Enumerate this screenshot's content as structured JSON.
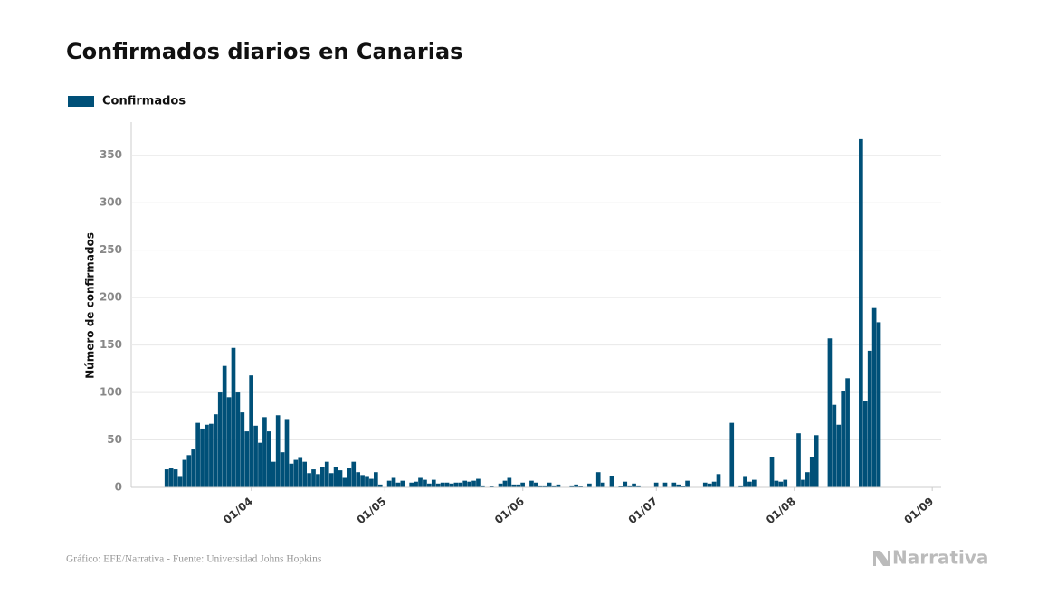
{
  "chart_data": {
    "type": "bar",
    "title": "Confirmados diarios en Canarias",
    "ylabel": "Número de confirmados",
    "source": "Gráfico: EFE/Narrativa - Fuente: Universidad Johns Hopkins",
    "logo": "Narrativa",
    "series": [
      {
        "name": "Confirmados",
        "color": "#005078",
        "values": [
          19,
          20,
          19,
          11,
          29,
          34,
          40,
          68,
          62,
          66,
          67,
          77,
          100,
          128,
          95,
          147,
          100,
          79,
          59,
          118,
          65,
          47,
          74,
          59,
          27,
          76,
          37,
          72,
          25,
          29,
          31,
          27,
          15,
          19,
          14,
          21,
          27,
          15,
          21,
          18,
          10,
          20,
          27,
          16,
          13,
          11,
          9,
          16,
          3,
          0,
          7,
          10,
          5,
          7,
          0,
          5,
          6,
          10,
          8,
          4,
          8,
          4,
          5,
          5,
          4,
          5,
          5,
          7,
          6,
          7,
          9,
          2,
          0,
          1,
          0,
          4,
          7,
          10,
          3,
          3,
          5,
          0,
          7,
          5,
          2,
          2,
          5,
          2,
          3,
          0,
          0,
          2,
          3,
          1,
          0,
          4,
          0,
          16,
          5,
          0,
          12,
          0,
          1,
          6,
          2,
          4,
          2,
          0,
          0,
          0,
          5,
          0,
          5,
          0,
          5,
          3,
          1,
          7,
          0,
          0,
          0,
          5,
          4,
          6,
          14,
          0,
          0,
          68,
          0,
          2,
          11,
          6,
          8,
          0,
          0,
          0,
          32,
          7,
          6,
          8,
          0,
          0,
          57,
          8,
          16,
          32,
          55,
          0,
          0,
          157,
          87,
          66,
          101,
          115,
          0,
          0,
          367,
          91,
          144,
          189,
          174
        ]
      }
    ],
    "x": [
      "13/03",
      "14/03",
      "15/03",
      "16/03",
      "17/03",
      "18/03",
      "19/03",
      "20/03",
      "21/03",
      "22/03",
      "23/03",
      "24/03",
      "25/03",
      "26/03",
      "27/03",
      "28/03",
      "29/03",
      "30/03",
      "31/03",
      "01/04",
      "02/04",
      "03/04",
      "04/04",
      "05/04",
      "06/04",
      "07/04",
      "08/04",
      "09/04",
      "10/04",
      "11/04",
      "12/04",
      "13/04",
      "14/04",
      "15/04",
      "16/04",
      "17/04",
      "18/04",
      "19/04",
      "20/04",
      "21/04",
      "22/04",
      "23/04",
      "24/04",
      "25/04",
      "26/04",
      "27/04",
      "28/04",
      "29/04",
      "30/04",
      "01/05",
      "02/05",
      "03/05",
      "04/05",
      "05/05",
      "06/05",
      "07/05",
      "08/05",
      "09/05",
      "10/05",
      "11/05",
      "12/05",
      "13/05",
      "14/05",
      "15/05",
      "16/05",
      "17/05",
      "18/05",
      "19/05",
      "20/05",
      "21/05",
      "22/05",
      "23/05",
      "24/05",
      "25/05",
      "26/05",
      "27/05",
      "28/05",
      "29/05",
      "30/05",
      "31/05",
      "01/06",
      "02/06",
      "03/06",
      "04/06",
      "05/06",
      "06/06",
      "07/06",
      "08/06",
      "09/06",
      "10/06",
      "11/06",
      "12/06",
      "13/06",
      "14/06",
      "15/06",
      "16/06",
      "17/06",
      "18/06",
      "19/06",
      "20/06",
      "21/06",
      "22/06",
      "23/06",
      "24/06",
      "25/06",
      "26/06",
      "27/06",
      "28/06",
      "29/06",
      "30/06",
      "01/07",
      "02/07",
      "03/07",
      "04/07",
      "05/07",
      "06/07",
      "07/07",
      "08/07",
      "09/07",
      "10/07",
      "11/07",
      "12/07",
      "13/07",
      "14/07",
      "15/07",
      "16/07",
      "17/07",
      "18/07",
      "19/07",
      "20/07",
      "21/07",
      "22/07",
      "23/07",
      "24/07",
      "25/07",
      "26/07",
      "27/07",
      "28/07",
      "29/07",
      "30/07",
      "31/07",
      "01/08",
      "02/08",
      "03/08",
      "04/08",
      "05/08",
      "06/08",
      "07/08",
      "08/08",
      "09/08",
      "10/08",
      "11/08",
      "12/08",
      "13/08",
      "14/08",
      "15/08",
      "16/08",
      "17/08",
      "18/08",
      "19/08",
      "20/08"
    ],
    "xlim": [
      "05/03",
      "03/09"
    ],
    "xticks": [
      "01/04",
      "01/05",
      "01/06",
      "01/07",
      "01/08",
      "01/09"
    ],
    "ylim": [
      0,
      385
    ],
    "yticks": [
      0,
      50,
      100,
      150,
      200,
      250,
      300,
      350
    ],
    "grid": true
  }
}
